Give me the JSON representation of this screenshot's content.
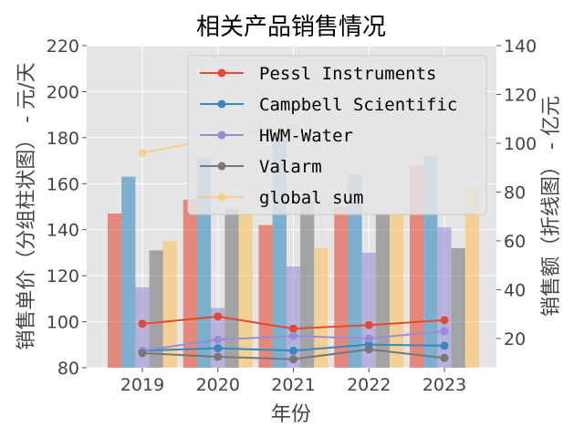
{
  "chart_data": {
    "type": "bar+line",
    "title": "相关产品销售情况",
    "xlabel": "年份",
    "ylabel_left": "销售单价（分组柱状图） - 元/天",
    "ylabel_right": "销售额（折线图） - 亿元",
    "categories": [
      "2019",
      "2020",
      "2021",
      "2022",
      "2023"
    ],
    "ylim_left": [
      80,
      220
    ],
    "yticks_left": [
      80,
      100,
      120,
      140,
      160,
      180,
      200,
      220
    ],
    "ylim_right": [
      8,
      140
    ],
    "yticks_right": [
      20,
      40,
      60,
      80,
      100,
      120,
      140
    ],
    "grid": true,
    "legend_position": "top-right",
    "bar_series": [
      {
        "name": "Pessl Instruments",
        "color": "#E24A33",
        "values": [
          147,
          153,
          142,
          150,
          168
        ]
      },
      {
        "name": "Campbell Scientific",
        "color": "#348ABD",
        "values": [
          163,
          171,
          180,
          164,
          172
        ]
      },
      {
        "name": "HWM-Water",
        "color": "#988ED5",
        "values": [
          115,
          106,
          124,
          130,
          141
        ]
      },
      {
        "name": "Valarm",
        "color": "#777777",
        "values": [
          131,
          149,
          152,
          147,
          132
        ]
      },
      {
        "name": "global sum",
        "color": "#FBC15E",
        "values": [
          135,
          147,
          132,
          147,
          158
        ]
      }
    ],
    "line_series": [
      {
        "name": "Pessl Instruments",
        "color": "#E24A33",
        "values": [
          26,
          29,
          24,
          25.5,
          27.5
        ]
      },
      {
        "name": "Campbell Scientific",
        "color": "#348ABD",
        "values": [
          15,
          16,
          15,
          17.5,
          17
        ]
      },
      {
        "name": "HWM-Water",
        "color": "#988ED5",
        "values": [
          15,
          19.5,
          21,
          20,
          23
        ]
      },
      {
        "name": "Valarm",
        "color": "#777777",
        "values": [
          14,
          12.5,
          11.5,
          15.5,
          12
        ]
      },
      {
        "name": "global sum",
        "color": "#FBC15E",
        "values": [
          96,
          102,
          107,
          112,
          120
        ]
      }
    ]
  }
}
